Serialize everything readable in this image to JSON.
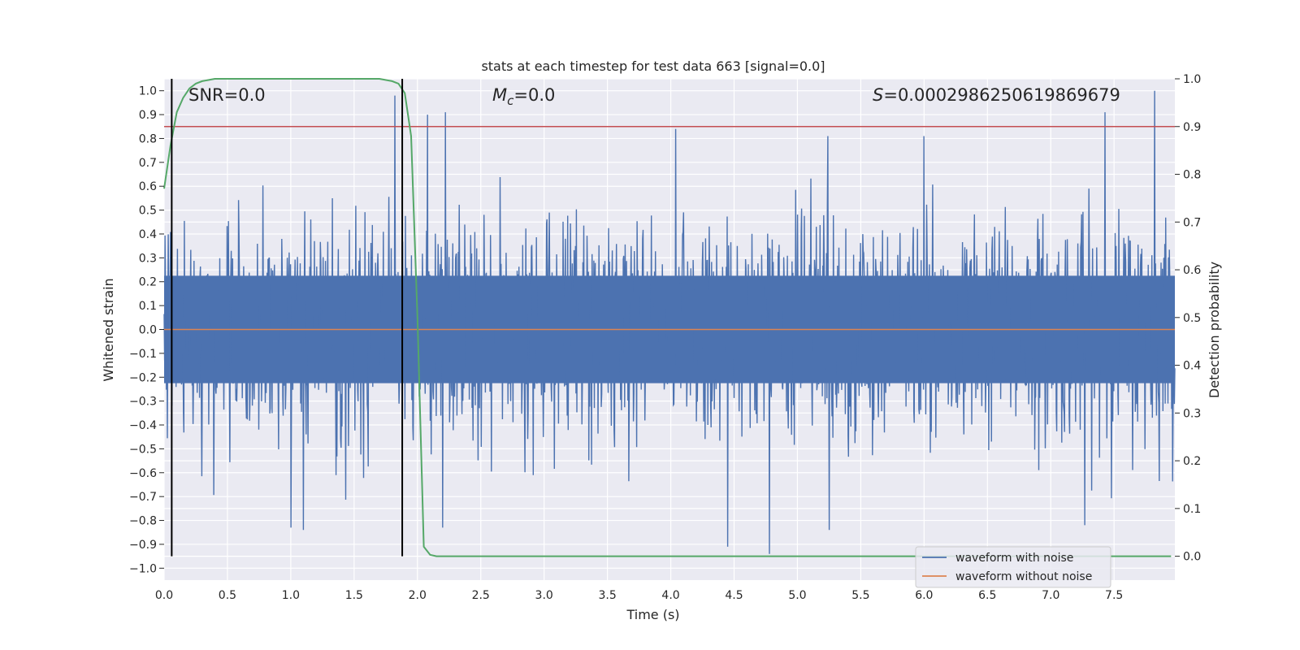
{
  "chart_data": {
    "type": "line",
    "title": "stats at each timestep for test data 663 [signal=0.0]",
    "xlabel": "Time (s)",
    "ylabel_left": "Whitened strain",
    "ylabel_right": "Detection probability",
    "xlim": [
      0.0,
      7.98
    ],
    "ylim_left": [
      -1.05,
      1.05
    ],
    "ylim_right": [
      -0.05,
      1.0
    ],
    "x_ticks": [
      0.0,
      0.5,
      1.0,
      1.5,
      2.0,
      2.5,
      3.0,
      3.5,
      4.0,
      4.5,
      5.0,
      5.5,
      6.0,
      6.5,
      7.0,
      7.5
    ],
    "x_tick_labels": [
      "0.0",
      "0.5",
      "1.0",
      "1.5",
      "2.0",
      "2.5",
      "3.0",
      "3.5",
      "4.0",
      "4.5",
      "5.0",
      "5.5",
      "6.0",
      "6.5",
      "7.0",
      "7.5"
    ],
    "y_left_ticks": [
      1.0,
      0.9,
      0.8,
      0.7,
      0.6,
      0.5,
      0.4,
      0.3,
      0.2,
      0.1,
      0.0,
      -0.1,
      -0.2,
      -0.3,
      -0.4,
      -0.5,
      -0.6,
      -0.7,
      -0.8,
      -0.9,
      -1.0
    ],
    "y_left_tick_labels": [
      "1.0",
      "0.9",
      "0.8",
      "0.7",
      "0.6",
      "0.5",
      "0.4",
      "0.3",
      "0.2",
      "0.1",
      "0.0",
      "−0.1",
      "−0.2",
      "−0.3",
      "−0.4",
      "−0.5",
      "−0.6",
      "−0.7",
      "−0.8",
      "−0.9",
      "−1.0"
    ],
    "y_right_ticks": [
      1.0,
      0.9,
      0.8,
      0.7,
      0.6,
      0.5,
      0.4,
      0.3,
      0.2,
      0.1,
      0.0
    ],
    "y_right_tick_labels": [
      "1.0",
      "0.9",
      "0.8",
      "0.7",
      "0.6",
      "0.5",
      "0.4",
      "0.3",
      "0.2",
      "0.1",
      "0.0"
    ],
    "grid": true,
    "legend_position": "bottom-right",
    "annotations": {
      "snr": "SNR=0.0",
      "mc_symbol": "M",
      "mc_sub": "c",
      "mc_value": "=0.0",
      "s_symbol": "S",
      "s_value": "=0.0002986250619869679"
    },
    "series": [
      {
        "name": "waveform with noise",
        "color": "#4c72b0",
        "axis": "left",
        "kind": "noise",
        "typical_amplitude": 0.45,
        "max": 1.0,
        "min": -0.94,
        "notable_peaks": [
          [
            1.82,
            0.98
          ],
          [
            2.08,
            0.9
          ],
          [
            2.22,
            0.91
          ],
          [
            4.04,
            0.84
          ],
          [
            5.24,
            0.81
          ],
          [
            6.0,
            0.81
          ],
          [
            7.43,
            0.91
          ],
          [
            7.82,
            1.0
          ],
          [
            4.78,
            -0.94
          ],
          [
            4.45,
            -0.91
          ],
          [
            5.25,
            -0.84
          ],
          [
            7.27,
            -0.82
          ],
          [
            2.2,
            -0.83
          ],
          [
            1.0,
            -0.83
          ],
          [
            1.1,
            -0.84
          ]
        ]
      },
      {
        "name": "waveform without noise",
        "color": "#dd8452",
        "axis": "left",
        "kind": "constant",
        "values_x": [
          0.0,
          7.98
        ],
        "values_y": [
          0.0,
          0.0
        ]
      },
      {
        "name": "detection probability",
        "color": "#55a868",
        "axis": "right",
        "kind": "line",
        "x": [
          0.0,
          0.05,
          0.1,
          0.15,
          0.2,
          0.25,
          0.3,
          0.4,
          0.5,
          1.0,
          1.5,
          1.7,
          1.8,
          1.85,
          1.9,
          1.95,
          2.0,
          2.05,
          2.1,
          2.15,
          2.5,
          7.95
        ],
        "y": [
          0.77,
          0.86,
          0.93,
          0.96,
          0.98,
          0.99,
          0.995,
          1.0,
          1.0,
          1.0,
          1.0,
          1.0,
          0.995,
          0.99,
          0.97,
          0.88,
          0.5,
          0.02,
          0.003,
          0.0,
          0.0,
          0.0
        ]
      },
      {
        "name": "threshold",
        "color": "#c44e52",
        "axis": "right",
        "kind": "hline",
        "y": 0.9
      }
    ],
    "vertical_markers": [
      0.06,
      1.88
    ],
    "vertical_marker_color": "#000000"
  }
}
